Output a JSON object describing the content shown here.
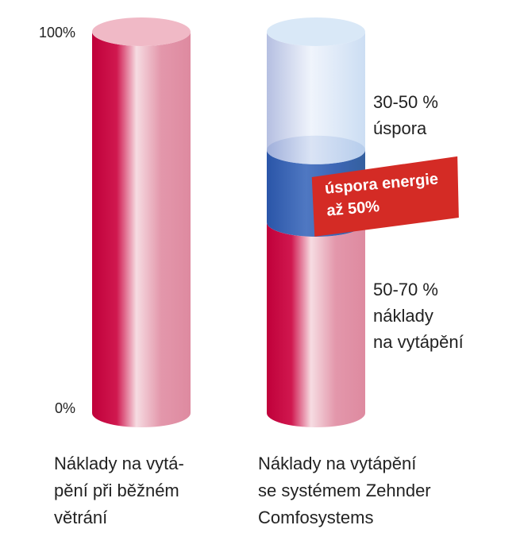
{
  "chart_data": {
    "type": "cylinder",
    "categories": [
      [
        "Náklady na vytá-",
        "pění při běžném",
        "větrání"
      ],
      [
        "Náklady na vytápění",
        "se systémem Zehnder",
        "Comfosystems"
      ]
    ],
    "series": [
      {
        "color": "#c8003c",
        "values": [
          100,
          50
        ]
      },
      {
        "color": "#2f5fb0",
        "values": [
          null,
          19
        ]
      },
      {
        "color": "#9ec3ea",
        "values": [
          null,
          31
        ]
      }
    ],
    "ylim": [
      0,
      100
    ],
    "yticks": [
      {
        "value": 0,
        "label": "0%"
      },
      {
        "value": 100,
        "label": "100%"
      }
    ],
    "annotations": [
      [
        "30-50 %",
        "úspora"
      ],
      [
        "50-70 %",
        "náklady",
        "na vytápění"
      ]
    ],
    "callout": [
      "úspora energie",
      "až 50%"
    ]
  }
}
